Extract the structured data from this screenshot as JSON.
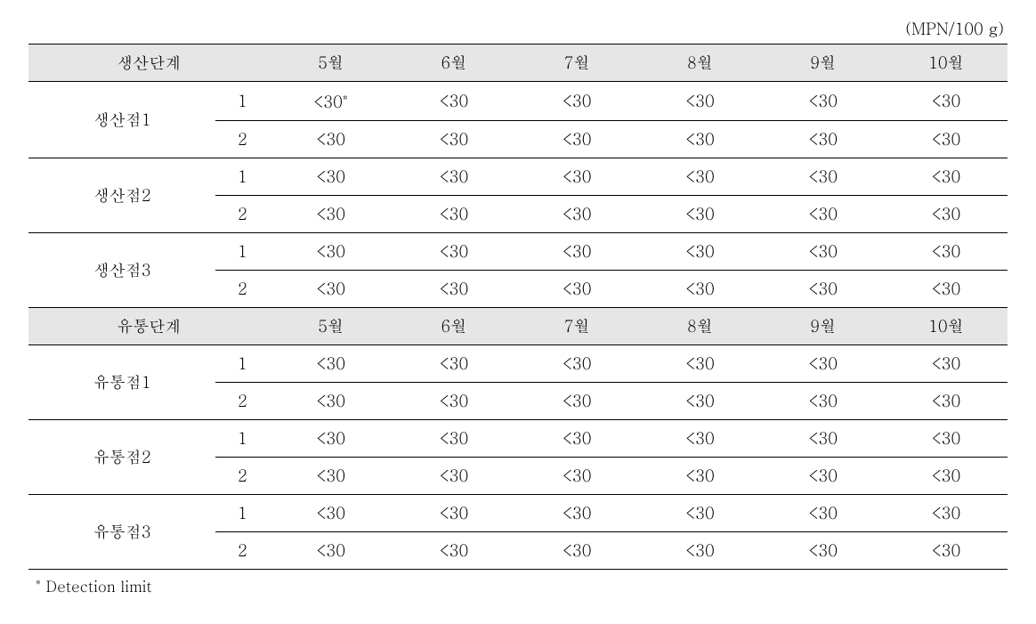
{
  "unit_label": "(MPN/100 g)",
  "footnote_marker": "*",
  "footnote_text": "Detection limit",
  "months": [
    "5월",
    "6월",
    "7월",
    "8월",
    "9월",
    "10월"
  ],
  "sections": [
    {
      "header": "생산단계",
      "groups": [
        {
          "label": "생산점1",
          "rows": [
            {
              "sub": "1",
              "cells": [
                "<30*",
                "<30",
                "<30",
                "<30",
                "<30",
                "<30"
              ],
              "has_sup": true
            },
            {
              "sub": "2",
              "cells": [
                "<30",
                "<30",
                "<30",
                "<30",
                "<30",
                "<30"
              ]
            }
          ]
        },
        {
          "label": "생산점2",
          "rows": [
            {
              "sub": "1",
              "cells": [
                "<30",
                "<30",
                "<30",
                "<30",
                "<30",
                "<30"
              ]
            },
            {
              "sub": "2",
              "cells": [
                "<30",
                "<30",
                "<30",
                "<30",
                "<30",
                "<30"
              ]
            }
          ]
        },
        {
          "label": "생산점3",
          "rows": [
            {
              "sub": "1",
              "cells": [
                "<30",
                "<30",
                "<30",
                "<30",
                "<30",
                "<30"
              ]
            },
            {
              "sub": "2",
              "cells": [
                "<30",
                "<30",
                "<30",
                "<30",
                "<30",
                "<30"
              ]
            }
          ]
        }
      ]
    },
    {
      "header": "유통단계",
      "groups": [
        {
          "label": "유통점1",
          "rows": [
            {
              "sub": "1",
              "cells": [
                "<30",
                "<30",
                "<30",
                "<30",
                "<30",
                "<30"
              ]
            },
            {
              "sub": "2",
              "cells": [
                "<30",
                "<30",
                "<30",
                "<30",
                "<30",
                "<30"
              ]
            }
          ]
        },
        {
          "label": "유통점2",
          "rows": [
            {
              "sub": "1",
              "cells": [
                "<30",
                "<30",
                "<30",
                "<30",
                "<30",
                "<30"
              ]
            },
            {
              "sub": "2",
              "cells": [
                "<30",
                "<30",
                "<30",
                "<30",
                "<30",
                "<30"
              ]
            }
          ]
        },
        {
          "label": "유통점3",
          "rows": [
            {
              "sub": "1",
              "cells": [
                "<30",
                "<30",
                "<30",
                "<30",
                "<30",
                "<30"
              ]
            },
            {
              "sub": "2",
              "cells": [
                "<30",
                "<30",
                "<30",
                "<30",
                "<30",
                "<30"
              ]
            }
          ]
        }
      ]
    }
  ],
  "style": {
    "page_bg": "#ffffff",
    "header_bg": "#e6e6e6",
    "border_color": "#000000",
    "font_size_body": 18,
    "font_size_footnote": 17
  }
}
